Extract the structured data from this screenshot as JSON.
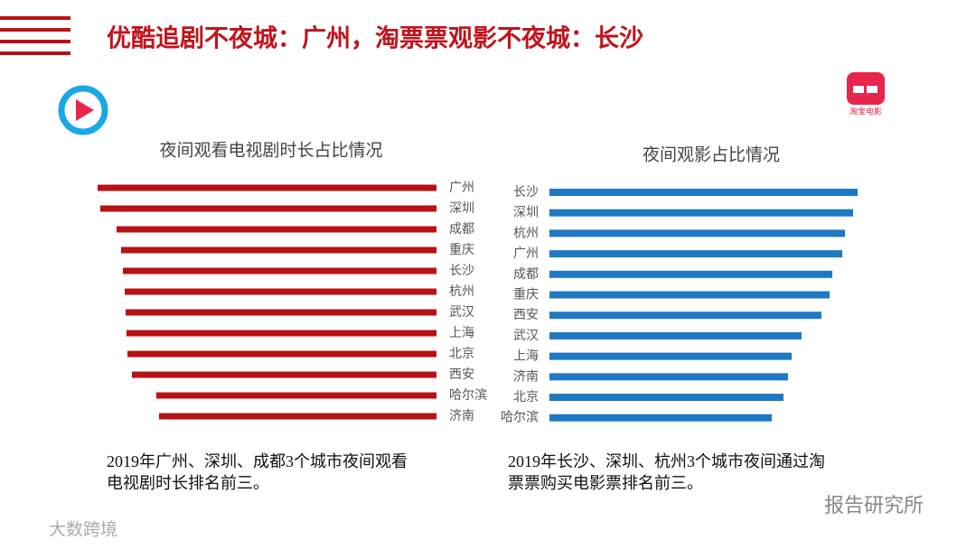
{
  "title": "优酷追剧不夜城：广州，淘票票观影不夜城：长沙",
  "chart_data": [
    {
      "type": "bar",
      "orientation": "horizontal-left",
      "title": "夜间观看电视剧时长占比情况",
      "categories": [
        "广州",
        "深圳",
        "成都",
        "重庆",
        "长沙",
        "杭州",
        "武汉",
        "上海",
        "北京",
        "西安",
        "哈尔滨",
        "济南"
      ],
      "values": [
        375,
        372,
        354,
        349,
        347,
        345,
        344,
        343,
        342,
        337,
        310,
        307
      ],
      "color": "#b81216",
      "xlim": [
        0,
        380
      ]
    },
    {
      "type": "bar",
      "orientation": "horizontal-right",
      "title": "夜间观影占比情况",
      "categories": [
        "长沙",
        "深圳",
        "杭州",
        "广州",
        "成都",
        "重庆",
        "西安",
        "武汉",
        "上海",
        "济南",
        "北京",
        "哈尔滨"
      ],
      "values": [
        341,
        336,
        327,
        324,
        313,
        310,
        301,
        279,
        268,
        264,
        259,
        246
      ],
      "color": "#1f78c4",
      "xlim": [
        0,
        380
      ]
    }
  ],
  "captions": [
    [
      "2019年广州、深圳、成都3个城市夜间观看",
      "电视剧时长排名前三。"
    ],
    [
      "2019年长沙、深圳、杭州3个城市夜间通过淘",
      "票票购买电影票排名前三。"
    ]
  ],
  "logo_text": "淘宝电影",
  "watermarks": [
    "报告研究所",
    "大数跨境"
  ]
}
